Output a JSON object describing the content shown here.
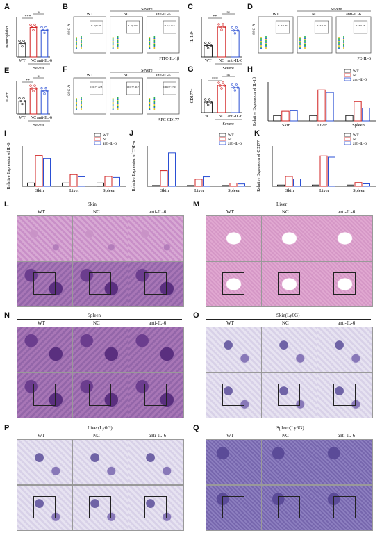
{
  "panels": {
    "A": {
      "letter": "A",
      "ylabel": "Neutrophils+",
      "categories": [
        "WT",
        "NC",
        "anti-IL-6"
      ],
      "group": "Severe",
      "sig": [
        "***",
        "ns"
      ]
    },
    "B": {
      "letter": "B",
      "ylabel": "SSC-A",
      "xlabel": "FITC-IL-1β",
      "cols": [
        "WT",
        "NC",
        "anti-IL-6"
      ],
      "group": "Severe",
      "gates": [
        "IL-1β 1.08",
        "IL-1β 2.97",
        "IL-1β 1.12"
      ]
    },
    "C": {
      "letter": "C",
      "ylabel": "IL-1β+",
      "categories": [
        "WT",
        "NC",
        "anti-IL-6"
      ],
      "group": "Severe",
      "sig": [
        "**",
        "ns"
      ]
    },
    "D": {
      "letter": "D",
      "ylabel": "SSC-A",
      "xlabel": "PE-IL-6",
      "cols": [
        "WT",
        "NC",
        "anti-IL-6"
      ],
      "group": "Severe",
      "gates": [
        "IL-6 2.79",
        "IL-6 7.22",
        "IL-6 6.53"
      ]
    },
    "E": {
      "letter": "E",
      "ylabel": "IL-6+",
      "categories": [
        "WT",
        "NC",
        "anti-IL-6"
      ],
      "group": "Severe",
      "sig": [
        "**",
        "ns"
      ]
    },
    "F": {
      "letter": "F",
      "ylabel": "SSC-A",
      "xlabel": "APC-CD177",
      "cols": [
        "WT",
        "NC",
        "anti-IL-6"
      ],
      "group": "Severe",
      "gates": [
        "CD177 22.8",
        "CD177 40.7",
        "CD177 37.9"
      ]
    },
    "G": {
      "letter": "G",
      "ylabel": "CD177+",
      "categories": [
        "WT",
        "NC",
        "anti-IL-6"
      ],
      "group": "Severe",
      "sig": [
        "***",
        "ns"
      ]
    },
    "H": {
      "letter": "H",
      "ylabel": "Relative Expression of IL-1β",
      "categories": [
        "Skin",
        "Liver",
        "Spleen"
      ]
    },
    "I": {
      "letter": "I",
      "ylabel": "Relative Expression of IL-6",
      "categories": [
        "Skin",
        "Liver",
        "Spleen"
      ]
    },
    "J": {
      "letter": "J",
      "ylabel": "Relative Expression of TNF-α",
      "categories": [
        "Skin",
        "Liver",
        "Spleen"
      ]
    },
    "K": {
      "letter": "K",
      "ylabel": "Relative Expression of CD177",
      "categories": [
        "Skin",
        "Liver",
        "Spleen"
      ]
    },
    "L": {
      "letter": "L",
      "title": "Skin",
      "cols": [
        "WT",
        "NC",
        "anti-IL-6"
      ]
    },
    "M": {
      "letter": "M",
      "title": "Liver",
      "cols": [
        "WT",
        "NC",
        "anti-IL-6"
      ]
    },
    "N": {
      "letter": "N",
      "title": "Spleen",
      "cols": [
        "WT",
        "NC",
        "anti-IL-6"
      ]
    },
    "O": {
      "letter": "O",
      "title": "Skin(Ly6G)",
      "cols": [
        "WT",
        "NC",
        "anti-IL-6"
      ]
    },
    "P": {
      "letter": "P",
      "title": "Liver(Ly6G)",
      "cols": [
        "WT",
        "NC",
        "anti-IL-6"
      ]
    },
    "Q": {
      "letter": "Q",
      "title": "Spleen(Ly6G)",
      "cols": [
        "WT",
        "NC",
        "anti-IL-6"
      ]
    }
  },
  "legend": [
    "WT",
    "NC",
    "anti-IL-6"
  ],
  "colors": {
    "wt": "#222222",
    "nc": "#d12020",
    "anti": "#2a4fd4"
  },
  "chart_data": [
    {
      "type": "bar",
      "panel": "A",
      "categories": [
        "WT",
        "NC",
        "anti-IL-6"
      ],
      "values": [
        1.0,
        2.2,
        2.0
      ],
      "ylabel": "Neutrophils+"
    },
    {
      "type": "bar",
      "panel": "C",
      "categories": [
        "WT",
        "NC",
        "anti-IL-6"
      ],
      "values": [
        1.0,
        2.6,
        2.3
      ],
      "ylabel": "IL-1β+"
    },
    {
      "type": "bar",
      "panel": "E",
      "categories": [
        "WT",
        "NC",
        "anti-IL-6"
      ],
      "values": [
        1.0,
        2.0,
        1.8
      ],
      "ylabel": "IL-6+"
    },
    {
      "type": "bar",
      "panel": "G",
      "categories": [
        "WT",
        "NC",
        "anti-IL-6"
      ],
      "values": [
        1.0,
        2.6,
        2.4
      ],
      "ylabel": "CD177+"
    },
    {
      "type": "bar",
      "panel": "H",
      "categories": [
        "Skin",
        "Liver",
        "Spleen"
      ],
      "series": [
        {
          "name": "WT",
          "values": [
            1,
            1,
            1
          ]
        },
        {
          "name": "NC",
          "values": [
            1.8,
            5.8,
            3.6
          ]
        },
        {
          "name": "anti-IL-6",
          "values": [
            1.9,
            5.3,
            2.4
          ]
        }
      ],
      "ylabel": "Relative Expression of IL-1β"
    },
    {
      "type": "bar",
      "panel": "I",
      "categories": [
        "Skin",
        "Liver",
        "Spleen"
      ],
      "series": [
        {
          "name": "WT",
          "values": [
            1,
            1,
            1
          ]
        },
        {
          "name": "NC",
          "values": [
            9.5,
            3.6,
            3.0
          ]
        },
        {
          "name": "anti-IL-6",
          "values": [
            8.5,
            2.9,
            2.7
          ]
        }
      ],
      "ylabel": "Relative Expression of IL-6"
    },
    {
      "type": "bar",
      "panel": "J",
      "categories": [
        "Skin",
        "Liver",
        "Spleen"
      ],
      "series": [
        {
          "name": "WT",
          "values": [
            1,
            1,
            1
          ]
        },
        {
          "name": "NC",
          "values": [
            20,
            9,
            4
          ]
        },
        {
          "name": "anti-IL-6",
          "values": [
            43,
            12,
            3
          ]
        }
      ],
      "ylabel": "Relative Expression of TNF-α"
    },
    {
      "type": "bar",
      "panel": "K",
      "categories": [
        "Skin",
        "Liver",
        "Spleen"
      ],
      "series": [
        {
          "name": "WT",
          "values": [
            1,
            1,
            1
          ]
        },
        {
          "name": "NC",
          "values": [
            8,
            25,
            3
          ]
        },
        {
          "name": "anti-IL-6",
          "values": [
            6,
            24,
            2
          ]
        }
      ],
      "ylabel": "Relative Expression of CD177"
    }
  ]
}
